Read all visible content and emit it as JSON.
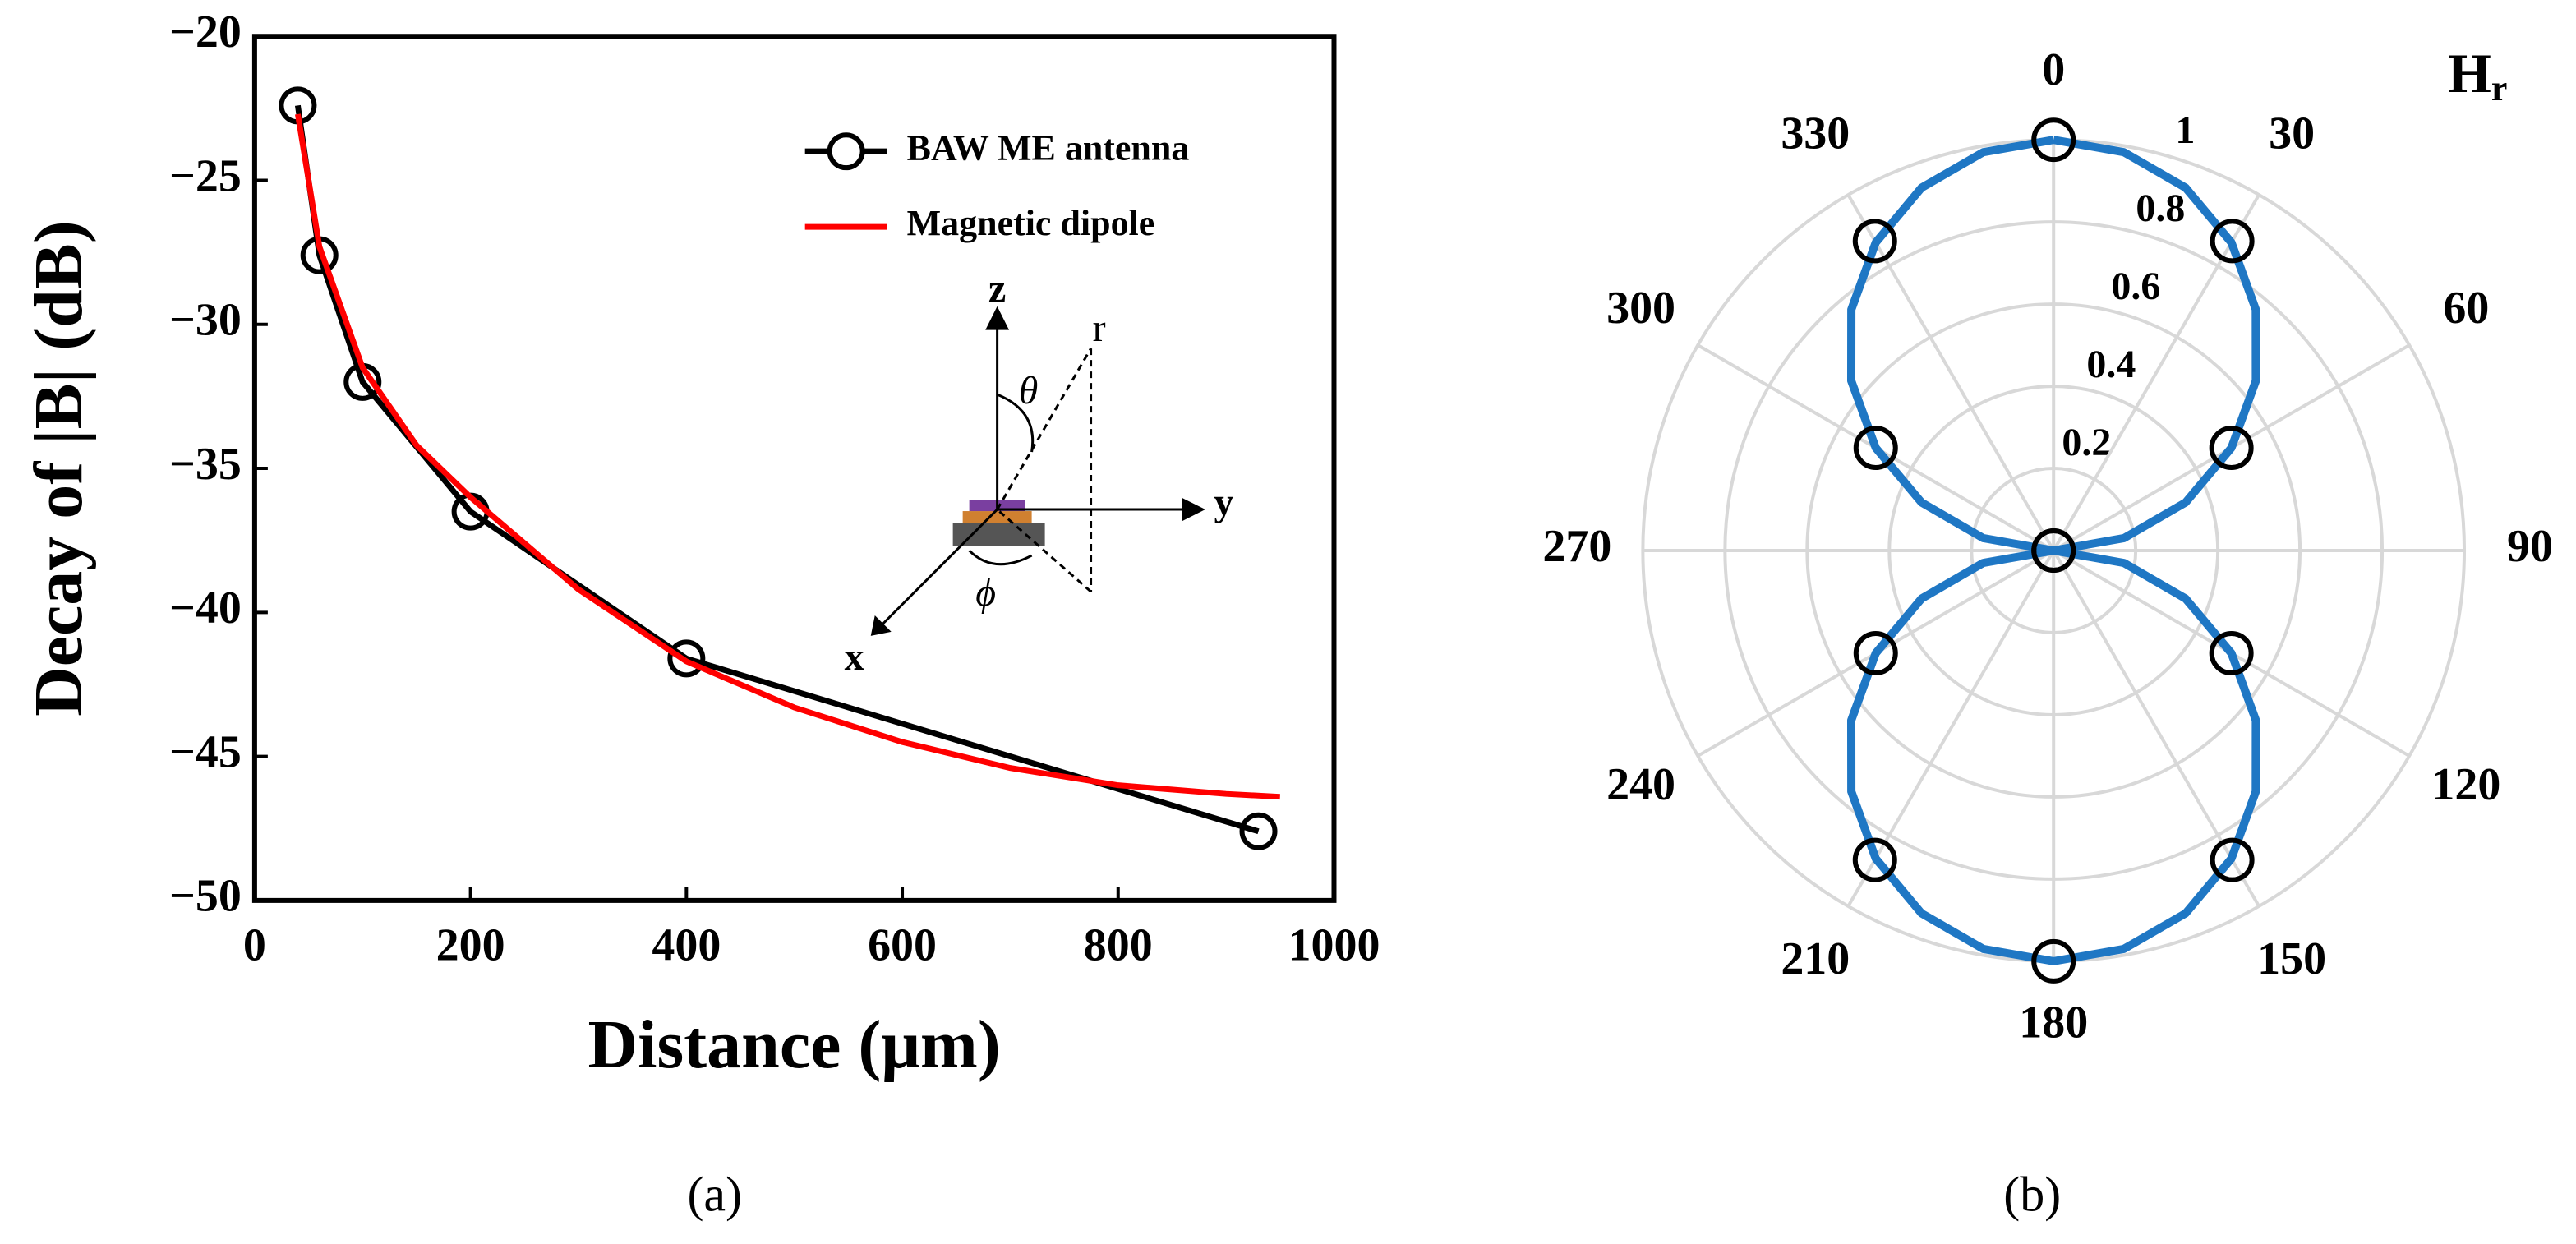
{
  "chart_data": [
    {
      "type": "line",
      "xlabel": "Distance (μm)",
      "ylabel": "Decay of |B| (dB)",
      "xlim": [
        0,
        1000
      ],
      "ylim": [
        -50,
        -20
      ],
      "xticks": [
        0,
        200,
        400,
        600,
        800,
        1000
      ],
      "yticks": [
        {
          "value": -50,
          "label": "−50"
        },
        {
          "value": -45,
          "label": "−45"
        },
        {
          "value": -40,
          "label": "−40"
        },
        {
          "value": -35,
          "label": "−35"
        },
        {
          "value": -30,
          "label": "−30"
        },
        {
          "value": -25,
          "label": "−25"
        },
        {
          "value": -20,
          "label": "−20"
        }
      ],
      "legend": "upper right",
      "annotations": [
        "z",
        "r",
        "θ",
        "y",
        "x",
        "ϕ"
      ],
      "caption": "(a)",
      "series": [
        {
          "name": "BAW ME antenna",
          "color": "#000000",
          "marker": "o",
          "x": [
            40,
            60,
            100,
            200,
            400,
            930
          ],
          "values": [
            -22.4,
            -27.6,
            -32.0,
            -36.5,
            -41.6,
            -47.6
          ]
        },
        {
          "name": "Magnetic dipole",
          "color": "#ff0000",
          "x": [
            40,
            60,
            100,
            150,
            200,
            300,
            400,
            500,
            600,
            700,
            800,
            900,
            950
          ],
          "values": [
            -22.7,
            -27.3,
            -31.5,
            -34.2,
            -36.0,
            -39.2,
            -41.7,
            -43.3,
            -44.5,
            -45.4,
            -46.0,
            -46.3,
            -46.4
          ]
        }
      ]
    },
    {
      "type": "polar",
      "title": "H",
      "title_subscript": "r",
      "rlim": [
        0,
        1
      ],
      "rticks": [
        0.2,
        0.4,
        0.6,
        0.8,
        1
      ],
      "thetaticks": [
        0,
        30,
        60,
        90,
        120,
        150,
        180,
        210,
        240,
        270,
        300,
        330
      ],
      "theta_zero": "N",
      "theta_direction": "clockwise",
      "grid": true,
      "caption": "(b)",
      "series": [
        {
          "color": "#1f77c4",
          "theta": [
            0,
            10,
            20,
            30,
            40,
            50,
            60,
            70,
            80,
            90,
            100,
            110,
            120,
            130,
            140,
            150,
            160,
            170,
            180,
            190,
            200,
            210,
            220,
            230,
            240,
            250,
            260,
            270,
            280,
            290,
            300,
            310,
            320,
            330,
            340,
            350,
            360
          ],
          "values": [
            1,
            0.985,
            0.94,
            0.866,
            0.766,
            0.643,
            0.5,
            0.342,
            0.174,
            0,
            0.174,
            0.342,
            0.5,
            0.643,
            0.766,
            0.866,
            0.94,
            0.985,
            1,
            0.985,
            0.94,
            0.866,
            0.766,
            0.643,
            0.5,
            0.342,
            0.174,
            0,
            0.174,
            0.342,
            0.5,
            0.643,
            0.766,
            0.866,
            0.94,
            0.985,
            1
          ]
        },
        {
          "color": "#000000",
          "marker": "o",
          "theta": [
            0,
            30,
            60,
            90,
            120,
            150,
            180,
            210,
            240,
            270,
            300,
            330
          ],
          "values": [
            1,
            0.87,
            0.5,
            0,
            0.5,
            0.87,
            1,
            0.87,
            0.5,
            0,
            0.5,
            0.87
          ]
        }
      ]
    }
  ]
}
